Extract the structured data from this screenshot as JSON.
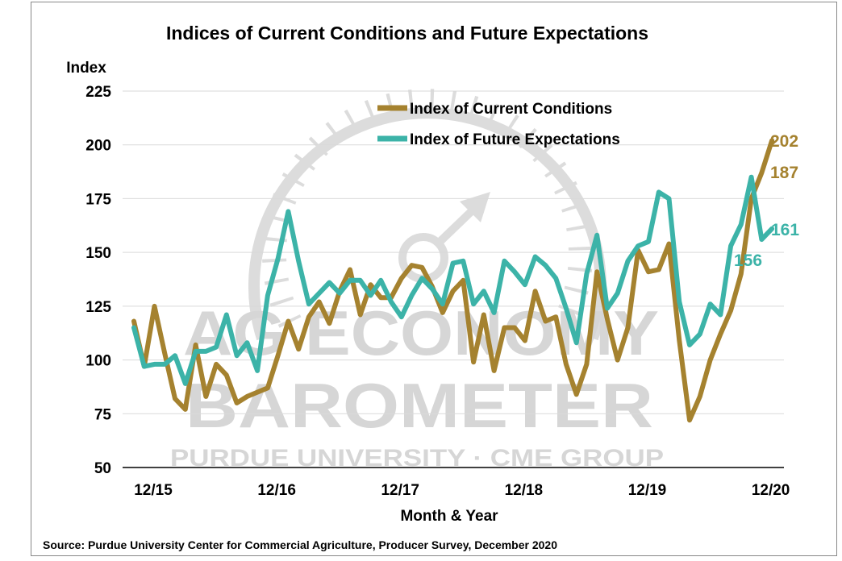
{
  "chart_data": {
    "type": "line",
    "title": "Indices of Current Conditions and Future Expectations",
    "ylabel": "Index",
    "xlabel": "Month & Year",
    "ylim": [
      50,
      225
    ],
    "yticks": [
      50,
      75,
      100,
      125,
      150,
      175,
      200,
      225
    ],
    "xtick_labels": [
      "12/15",
      "12/16",
      "12/17",
      "12/18",
      "12/19",
      "12/20"
    ],
    "xtick_index": [
      0,
      12,
      24,
      36,
      48,
      60
    ],
    "grid": true,
    "legend_position": "top-center",
    "series": [
      {
        "name": "Index of Current Conditions",
        "color": "#A5822F",
        "values": [
          118,
          97,
          125,
          103,
          82,
          77,
          107,
          83,
          98,
          93,
          80,
          83,
          85,
          87,
          102,
          118,
          105,
          120,
          127,
          117,
          132,
          142,
          121,
          135,
          129,
          129,
          138,
          144,
          143,
          134,
          122,
          132,
          137,
          99,
          121,
          95,
          115,
          115,
          109,
          132,
          118,
          120,
          98,
          84,
          98,
          141,
          119,
          100,
          115,
          151,
          141,
          142,
          154,
          109,
          72,
          83,
          100,
          112,
          123,
          140,
          175,
          187,
          202
        ]
      },
      {
        "name": "Index of Future Expectations",
        "color": "#3CB3A8",
        "values": [
          115,
          97,
          98,
          98,
          102,
          89,
          104,
          104,
          106,
          121,
          102,
          108,
          95,
          130,
          147,
          169,
          146,
          126,
          131,
          136,
          131,
          137,
          137,
          130,
          137,
          127,
          120,
          130,
          138,
          133,
          126,
          145,
          146,
          126,
          132,
          122,
          146,
          141,
          135,
          148,
          144,
          138,
          124,
          108,
          140,
          158,
          124,
          131,
          146,
          153,
          155,
          178,
          175,
          127,
          107,
          112,
          126,
          121,
          153,
          163,
          185,
          156,
          161
        ]
      }
    ],
    "end_labels": [
      {
        "text": "202",
        "series": 0
      },
      {
        "text": "187",
        "series": 0
      },
      {
        "text": "161",
        "series": 1
      },
      {
        "text": "156",
        "series": 1
      }
    ]
  },
  "watermark": {
    "line1": "AG ECONOMY",
    "line2": "BAROMETER",
    "line3": "PURDUE UNIVERSITY · CME GROUP"
  },
  "source_note": "Source: Purdue University Center for Commercial Agriculture, Producer Survey, December 2020"
}
